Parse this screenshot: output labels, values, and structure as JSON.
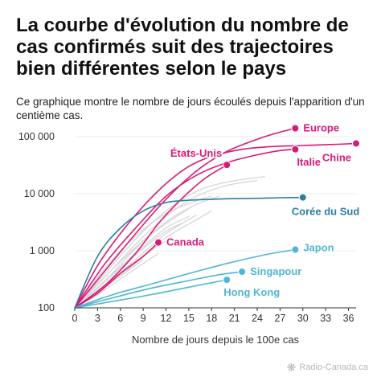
{
  "title": "La courbe d'évolution du nombre de cas confirmés suit des trajectoires bien différentes selon le pays",
  "subtitle": "Ce graphique montre le nombre de jours écoulés depuis l'apparition d'un centième cas.",
  "credit": "Radio-Canada.ca",
  "colors": {
    "highlight_pink": "#d81b78",
    "highlight_teal_dark": "#2a7fa2",
    "highlight_teal_light": "#4fb7d2",
    "other_countries": "#d6d6d6",
    "axis": "#333333",
    "grid": "#eeeeee"
  },
  "chart_data": {
    "type": "line",
    "xlabel": "Nombre de jours depuis le 100e cas",
    "ylabel": "",
    "y_scale": "log",
    "xlim": [
      0,
      37
    ],
    "ylim": [
      100,
      100000
    ],
    "x_ticks": [
      0,
      3,
      6,
      9,
      12,
      15,
      18,
      21,
      24,
      27,
      30,
      33,
      36
    ],
    "y_ticks": [
      100,
      1000,
      10000,
      100000
    ],
    "y_tick_labels": [
      "100",
      "1 000",
      "10 000",
      "100 000"
    ],
    "grid": true,
    "series": [
      {
        "name": "Europe",
        "color": "#d81b78",
        "x": [
          0,
          4,
          8,
          12,
          16,
          20,
          24,
          27,
          29
        ],
        "y": [
          100,
          450,
          2000,
          8000,
          25000,
          55000,
          90000,
          120000,
          140000
        ]
      },
      {
        "name": "Italie",
        "color": "#d81b78",
        "x": [
          0,
          4,
          8,
          12,
          16,
          20,
          24,
          27,
          29
        ],
        "y": [
          100,
          600,
          2500,
          9000,
          21000,
          35000,
          48000,
          57000,
          60000
        ]
      },
      {
        "name": "Chine",
        "color": "#d81b78",
        "x": [
          0,
          3,
          6,
          9,
          12,
          15,
          18,
          22,
          26,
          30,
          34,
          37
        ],
        "y": [
          100,
          550,
          2000,
          6000,
          15000,
          30000,
          45000,
          60000,
          67000,
          70000,
          73000,
          76000
        ]
      },
      {
        "name": "États-Unis",
        "color": "#d81b78",
        "x": [
          0,
          4,
          8,
          11,
          14,
          17,
          20
        ],
        "y": [
          100,
          250,
          900,
          3000,
          8000,
          18000,
          32000
        ]
      },
      {
        "name": "Canada",
        "color": "#d81b78",
        "x": [
          0,
          3,
          6,
          9,
          11
        ],
        "y": [
          100,
          180,
          400,
          800,
          1400
        ]
      },
      {
        "name": "Corée du Sud",
        "color": "#2a7fa2",
        "x": [
          0,
          3,
          6,
          9,
          12,
          15,
          18,
          21,
          24,
          27,
          30
        ],
        "y": [
          100,
          800,
          2500,
          5000,
          7000,
          7700,
          8000,
          8200,
          8300,
          8500,
          8600
        ]
      },
      {
        "name": "Japon",
        "color": "#4fb7d2",
        "x": [
          0,
          5,
          10,
          15,
          20,
          25,
          29
        ],
        "y": [
          100,
          170,
          260,
          400,
          600,
          850,
          1050
        ]
      },
      {
        "name": "Singapour",
        "color": "#4fb7d2",
        "x": [
          0,
          5,
          10,
          15,
          19,
          22
        ],
        "y": [
          100,
          150,
          220,
          300,
          380,
          430
        ]
      },
      {
        "name": "Hong Kong",
        "color": "#4fb7d2",
        "x": [
          0,
          5,
          10,
          15,
          20
        ],
        "y": [
          100,
          130,
          170,
          230,
          310
        ]
      }
    ],
    "other_series": [
      {
        "x": [
          0,
          4,
          8,
          12,
          16,
          20,
          25
        ],
        "y": [
          100,
          400,
          1600,
          5000,
          11000,
          16000,
          20000
        ]
      },
      {
        "x": [
          0,
          4,
          8,
          12,
          16,
          20,
          24
        ],
        "y": [
          100,
          350,
          1300,
          4000,
          9000,
          14000,
          17000
        ]
      },
      {
        "x": [
          0,
          4,
          8,
          12,
          16,
          19
        ],
        "y": [
          100,
          300,
          1100,
          3200,
          6500,
          9000
        ]
      },
      {
        "x": [
          0,
          4,
          8,
          12,
          16,
          18
        ],
        "y": [
          100,
          500,
          1800,
          4500,
          7500,
          9000
        ]
      },
      {
        "x": [
          0,
          4,
          8,
          12,
          15
        ],
        "y": [
          100,
          300,
          900,
          2500,
          4000
        ]
      },
      {
        "x": [
          0,
          4,
          8,
          12,
          16
        ],
        "y": [
          100,
          250,
          700,
          2000,
          4200
        ]
      },
      {
        "x": [
          0,
          3,
          6,
          9,
          12,
          14
        ],
        "y": [
          100,
          220,
          500,
          1100,
          2200,
          3000
        ]
      },
      {
        "x": [
          0,
          3,
          6,
          9,
          12
        ],
        "y": [
          100,
          200,
          400,
          800,
          1500
        ]
      },
      {
        "x": [
          0,
          3,
          6,
          9,
          11
        ],
        "y": [
          100,
          170,
          320,
          600,
          900
        ]
      },
      {
        "x": [
          0,
          3,
          6,
          9,
          12,
          15
        ],
        "y": [
          100,
          260,
          650,
          1500,
          3000,
          5500
        ]
      },
      {
        "x": [
          0,
          3,
          6,
          9
        ],
        "y": [
          100,
          190,
          360,
          700
        ]
      },
      {
        "x": [
          0,
          4,
          8,
          12,
          16,
          18
        ],
        "y": [
          100,
          230,
          600,
          1700,
          3500,
          5000
        ]
      }
    ]
  }
}
